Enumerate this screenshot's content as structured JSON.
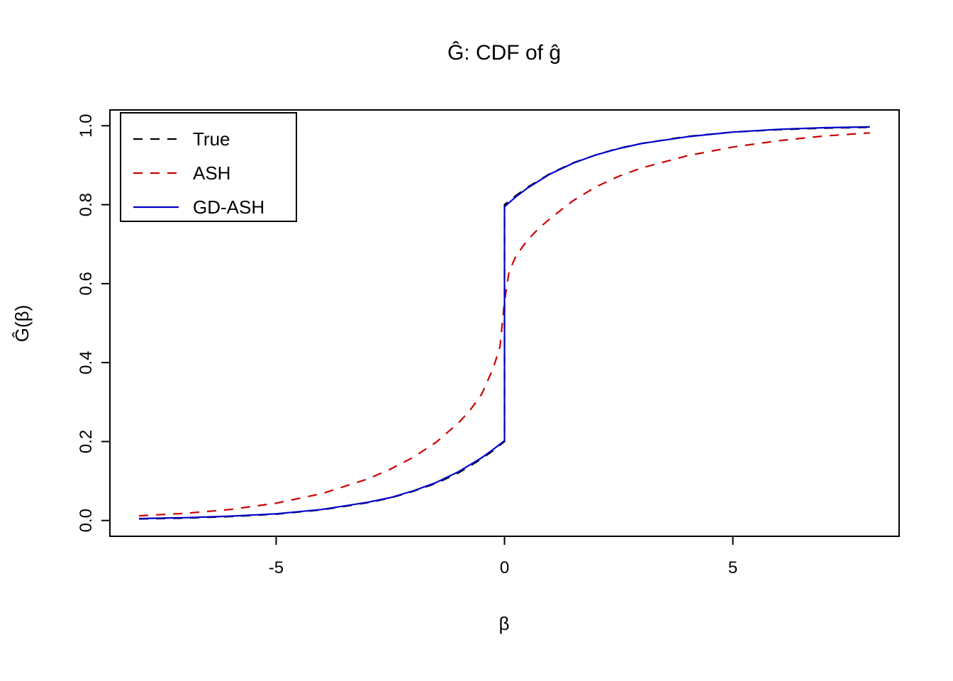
{
  "title": "Ĝ: CDF of ĝ",
  "chart_data": {
    "type": "line",
    "title": "Ĝ: CDF of ĝ",
    "xlabel": "β",
    "ylabel": "Ĝ(β)",
    "xlim": [
      -8.64,
      8.64
    ],
    "ylim": [
      -0.04,
      1.04
    ],
    "x_ticks": [
      -5,
      0,
      5
    ],
    "y_ticks": [
      0.0,
      0.2,
      0.4,
      0.6,
      0.8,
      1.0
    ],
    "grid": false,
    "legend_position": "top-left",
    "background": "#ffffff",
    "axis_color": "#000000",
    "series": [
      {
        "name": "True",
        "color": "#000000",
        "style": "dashed",
        "x": [
          -8,
          -7,
          -6,
          -5,
          -4,
          -3,
          -2.5,
          -2,
          -1.5,
          -1,
          -0.5,
          -0.25,
          0,
          0,
          0.25,
          0.5,
          1,
          1.5,
          2,
          2.5,
          3,
          4,
          5,
          6,
          7,
          8
        ],
        "y": [
          0.004,
          0.006,
          0.01,
          0.016,
          0.027,
          0.045,
          0.057,
          0.074,
          0.094,
          0.121,
          0.156,
          0.177,
          0.2,
          0.8,
          0.823,
          0.844,
          0.879,
          0.906,
          0.926,
          0.943,
          0.955,
          0.973,
          0.984,
          0.99,
          0.994,
          0.996
        ]
      },
      {
        "name": "ASH",
        "color": "#cc0000",
        "style": "dashed",
        "x": [
          -8,
          -7,
          -6,
          -5,
          -4,
          -3,
          -2.5,
          -2,
          -1.5,
          -1,
          -0.75,
          -0.5,
          -0.25,
          -0.1,
          0,
          0.1,
          0.25,
          0.5,
          0.75,
          1,
          1.5,
          2,
          2.5,
          3,
          4,
          5,
          6,
          7,
          8
        ],
        "y": [
          0.012,
          0.018,
          0.028,
          0.044,
          0.068,
          0.105,
          0.13,
          0.16,
          0.198,
          0.248,
          0.28,
          0.32,
          0.385,
          0.44,
          0.555,
          0.63,
          0.67,
          0.71,
          0.74,
          0.765,
          0.81,
          0.845,
          0.872,
          0.893,
          0.924,
          0.946,
          0.962,
          0.974,
          0.982
        ]
      },
      {
        "name": "GD-ASH",
        "color": "#0000cc",
        "style": "solid",
        "x": [
          -8,
          -7,
          -6,
          -5,
          -4,
          -3,
          -2.5,
          -2,
          -1.5,
          -1,
          -0.5,
          -0.25,
          0,
          0,
          0.25,
          0.5,
          1,
          1.5,
          2,
          2.5,
          3,
          4,
          5,
          6,
          7,
          8
        ],
        "y": [
          0.005,
          0.007,
          0.011,
          0.017,
          0.028,
          0.046,
          0.058,
          0.075,
          0.096,
          0.124,
          0.159,
          0.18,
          0.202,
          0.795,
          0.82,
          0.842,
          0.878,
          0.905,
          0.926,
          0.942,
          0.955,
          0.972,
          0.984,
          0.991,
          0.995,
          0.997
        ]
      }
    ]
  }
}
